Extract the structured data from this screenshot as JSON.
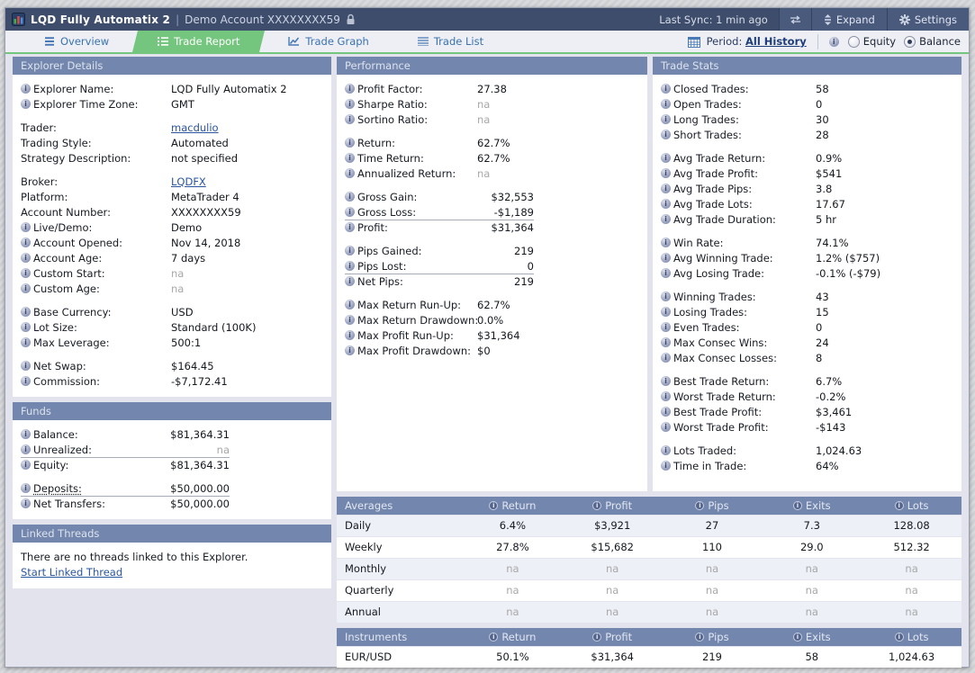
{
  "colors": {
    "titlebar_bg": "#3e4d6b",
    "titlebar_button_bg": "#4a5a7d",
    "tab_active_green": "#74c67e",
    "tab_text_blue": "#3a72ae",
    "section_header_bg": "#7386ad",
    "panel_bg": "#ffffff",
    "content_bg": "#e2e3ec",
    "link_blue": "#2a55a0",
    "na_gray": "#a8a8a8",
    "table_alt_row": "#edf0f6"
  },
  "title_bar": {
    "app_icon": "explorer-app-icon",
    "title": "LQD Fully Automatix 2",
    "separator": "|",
    "subtitle": "Demo Account XXXXXXXX59",
    "lock_icon": "lock-icon",
    "last_sync": "Last Sync: 1 min ago",
    "sync_icon": "sync-arrows-icon",
    "expand_label": "Expand",
    "settings_label": "Settings"
  },
  "tabs": [
    {
      "label": "Overview",
      "icon": "overview-icon",
      "active": false
    },
    {
      "label": "Trade Report",
      "icon": "trade-report-icon",
      "active": true
    },
    {
      "label": "Trade Graph",
      "icon": "trade-graph-icon",
      "active": false
    },
    {
      "label": "Trade List",
      "icon": "trade-list-icon",
      "active": false
    }
  ],
  "period": {
    "icon": "calendar-icon",
    "label": "Period:",
    "value": "All History"
  },
  "chart_mode": {
    "info_icon": "info-icon",
    "options": [
      {
        "label": "Equity",
        "selected": false
      },
      {
        "label": "Balance",
        "selected": true
      }
    ]
  },
  "panels": {
    "explorer_details": {
      "title": "Explorer Details",
      "rows": [
        {
          "info": true,
          "label": "Explorer Name:",
          "value": "LQD Fully Automatix 2"
        },
        {
          "info": true,
          "label": "Explorer Time Zone:",
          "value": "GMT"
        },
        {
          "gap": true,
          "label": "Trader:",
          "value": "macdulio",
          "link": true
        },
        {
          "label": "Trading Style:",
          "value": "Automated"
        },
        {
          "label": "Strategy Description:",
          "value": "not specified"
        },
        {
          "gap": true,
          "label": "Broker:",
          "value": "LQDFX",
          "link": true
        },
        {
          "label": "Platform:",
          "value": "MetaTrader 4"
        },
        {
          "label": "Account Number:",
          "value": "XXXXXXXX59"
        },
        {
          "info": true,
          "label": "Live/Demo:",
          "value": "Demo"
        },
        {
          "info": true,
          "label": "Account Opened:",
          "value": "Nov 14, 2018"
        },
        {
          "info": true,
          "label": "Account Age:",
          "value": "7 days"
        },
        {
          "info": true,
          "label": "Custom Start:",
          "value": "na",
          "na": true
        },
        {
          "info": true,
          "label": "Custom Age:",
          "value": "na",
          "na": true
        },
        {
          "gap": true,
          "info": true,
          "label": "Base Currency:",
          "value": "USD"
        },
        {
          "info": true,
          "label": "Lot Size:",
          "value": "Standard (100K)"
        },
        {
          "info": true,
          "label": "Max Leverage:",
          "value": "500:1"
        },
        {
          "gap": true,
          "info": true,
          "label": "Net Swap:",
          "value": "$164.45"
        },
        {
          "info": true,
          "label": "Commission:",
          "value": "-$7,172.41"
        }
      ]
    },
    "funds": {
      "title": "Funds",
      "rows": [
        {
          "info": true,
          "label": "Balance:",
          "value": "$81,364.31",
          "right": true
        },
        {
          "info": true,
          "label": "Unrealized:",
          "value": "na",
          "na": true,
          "right": true,
          "divider": true
        },
        {
          "info": true,
          "label": "Equity:",
          "value": "$81,364.31",
          "right": true
        },
        {
          "gap": true,
          "info": true,
          "label": "Deposits:",
          "value": "$50,000.00",
          "right": true,
          "divider": true,
          "label_dotted": true
        },
        {
          "info": true,
          "label": "Net Transfers:",
          "value": "$50,000.00",
          "right": true
        }
      ]
    },
    "linked_threads": {
      "title": "Linked Threads",
      "message": "There are no threads linked to this Explorer.",
      "link": "Start Linked Thread"
    },
    "performance": {
      "title": "Performance",
      "rows": [
        {
          "info": true,
          "label": "Profit Factor:",
          "value": "27.38"
        },
        {
          "info": true,
          "label": "Sharpe Ratio:",
          "value": "na",
          "na": true
        },
        {
          "info": true,
          "label": "Sortino Ratio:",
          "value": "na",
          "na": true
        },
        {
          "gap": true,
          "info": true,
          "label": "Return:",
          "value": "62.7%"
        },
        {
          "info": true,
          "label": "Time Return:",
          "value": "62.7%"
        },
        {
          "info": true,
          "label": "Annualized Return:",
          "value": "na",
          "na": true
        },
        {
          "gap": true,
          "info": true,
          "label": "Gross Gain:",
          "value": "$32,553",
          "right": true
        },
        {
          "info": true,
          "label": "Gross Loss:",
          "value": "-$1,189",
          "right": true,
          "divider": true
        },
        {
          "info": true,
          "label": "Profit:",
          "value": "$31,364",
          "right": true
        },
        {
          "gap": true,
          "info": true,
          "label": "Pips Gained:",
          "value": "219",
          "right": true
        },
        {
          "info": true,
          "label": "Pips Lost:",
          "value": "0",
          "right": true,
          "divider": true
        },
        {
          "info": true,
          "label": "Net Pips:",
          "value": "219",
          "right": true
        },
        {
          "gap": true,
          "info": true,
          "label": "Max Return Run-Up:",
          "value": "62.7%"
        },
        {
          "info": true,
          "label": "Max Return Drawdown:",
          "value": "0.0%"
        },
        {
          "info": true,
          "label": "Max Profit Run-Up:",
          "value": "$31,364"
        },
        {
          "info": true,
          "label": "Max Profit Drawdown:",
          "value": "$0"
        }
      ]
    },
    "trade_stats": {
      "title": "Trade Stats",
      "rows": [
        {
          "info": true,
          "label": "Closed Trades:",
          "value": "58"
        },
        {
          "info": true,
          "label": "Open Trades:",
          "value": "0"
        },
        {
          "info": true,
          "label": "Long Trades:",
          "value": "30"
        },
        {
          "info": true,
          "label": "Short Trades:",
          "value": "28"
        },
        {
          "gap": true,
          "info": true,
          "label": "Avg Trade Return:",
          "value": "0.9%"
        },
        {
          "info": true,
          "label": "Avg Trade Profit:",
          "value": "$541"
        },
        {
          "info": true,
          "label": "Avg Trade Pips:",
          "value": "3.8"
        },
        {
          "info": true,
          "label": "Avg Trade Lots:",
          "value": "17.67"
        },
        {
          "info": true,
          "label": "Avg Trade Duration:",
          "value": "5 hr"
        },
        {
          "gap": true,
          "info": true,
          "label": "Win Rate:",
          "value": "74.1%"
        },
        {
          "info": true,
          "label": "Avg Winning Trade:",
          "value": "1.2% ($757)"
        },
        {
          "info": true,
          "label": "Avg Losing Trade:",
          "value": "-0.1% (-$79)"
        },
        {
          "gap": true,
          "info": true,
          "label": "Winning Trades:",
          "value": "43"
        },
        {
          "info": true,
          "label": "Losing Trades:",
          "value": "15"
        },
        {
          "info": true,
          "label": "Even Trades:",
          "value": "0"
        },
        {
          "info": true,
          "label": "Max Consec Wins:",
          "value": "24"
        },
        {
          "info": true,
          "label": "Max Consec Losses:",
          "value": "8"
        },
        {
          "gap": true,
          "info": true,
          "label": "Best Trade Return:",
          "value": "6.7%"
        },
        {
          "info": true,
          "label": "Worst Trade Return:",
          "value": "-0.2%"
        },
        {
          "info": true,
          "label": "Best Trade Profit:",
          "value": "$3,461"
        },
        {
          "info": true,
          "label": "Worst Trade Profit:",
          "value": "-$143"
        },
        {
          "gap": true,
          "info": true,
          "label": "Lots Traded:",
          "value": "1,024.63"
        },
        {
          "info": true,
          "label": "Time in Trade:",
          "value": "64%"
        }
      ]
    }
  },
  "tables": {
    "averages": {
      "title": "Averages",
      "columns": [
        "Return",
        "Profit",
        "Pips",
        "Exits",
        "Lots"
      ],
      "rows": [
        {
          "label": "Daily",
          "values": [
            "6.4%",
            "$3,921",
            "27",
            "7.3",
            "128.08"
          ]
        },
        {
          "label": "Weekly",
          "values": [
            "27.8%",
            "$15,682",
            "110",
            "29.0",
            "512.32"
          ]
        },
        {
          "label": "Monthly",
          "values": [
            "na",
            "na",
            "na",
            "na",
            "na"
          ]
        },
        {
          "label": "Quarterly",
          "values": [
            "na",
            "na",
            "na",
            "na",
            "na"
          ]
        },
        {
          "label": "Annual",
          "values": [
            "na",
            "na",
            "na",
            "na",
            "na"
          ]
        }
      ]
    },
    "instruments": {
      "title": "Instruments",
      "columns": [
        "Return",
        "Profit",
        "Pips",
        "Exits",
        "Lots"
      ],
      "rows": [
        {
          "label": "EUR/USD",
          "values": [
            "50.1%",
            "$31,364",
            "219",
            "58",
            "1,024.63"
          ]
        }
      ]
    }
  }
}
